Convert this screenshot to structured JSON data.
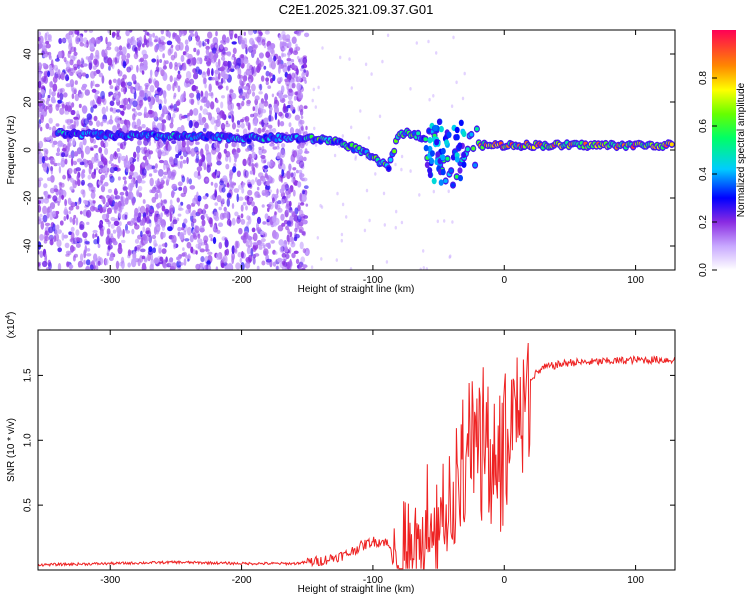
{
  "title": "C2E1.2025.321.09.37.G01",
  "chart_data": [
    {
      "type": "heatmap",
      "title": "C2E1.2025.321.09.37.G01",
      "xlabel": "Height of straight line (km)",
      "ylabel": "Frequency (Hz)",
      "xlim": [
        -355,
        130
      ],
      "ylim": [
        -50,
        50
      ],
      "xticks": [
        -300,
        -200,
        -100,
        0,
        100
      ],
      "xtick_labels": [
        "-300",
        "-200",
        "-100",
        "0",
        "100"
      ],
      "yticks": [
        -40,
        -20,
        0,
        20,
        40
      ],
      "ytick_labels": [
        "-40",
        "-20",
        "0",
        "20",
        "40"
      ],
      "colorbar": {
        "label": "Normalized spectral amplitude",
        "range": [
          0,
          1
        ],
        "ticks": [
          0.0,
          0.2,
          0.4,
          0.6,
          0.8
        ],
        "tick_labels": [
          "0.0",
          "0.2",
          "0.4",
          "0.6",
          "0.8"
        ]
      },
      "ridge": {
        "x": [
          -340,
          -300,
          -280,
          -200,
          -160,
          -130,
          -110,
          -95,
          -88,
          -80,
          -70,
          -55,
          -45,
          -40,
          -30,
          -20,
          0,
          50,
          130
        ],
        "frequency": [
          7,
          6,
          6,
          5,
          5,
          4,
          0,
          -5,
          -7,
          7,
          7,
          4,
          -5,
          -10,
          0,
          2,
          2,
          2,
          2
        ]
      }
    },
    {
      "type": "line",
      "xlabel": "Height of straight line (km)",
      "ylabel": "SNR (10 * v/v)",
      "y_multiplier": "(x10",
      "y_multiplier_exp": "4",
      "y_multiplier_close": ")",
      "xlim": [
        -355,
        130
      ],
      "ylim": [
        0,
        1.85
      ],
      "xticks": [
        -300,
        -200,
        -100,
        0,
        100
      ],
      "xtick_labels": [
        "-300",
        "-200",
        "-100",
        "0",
        "100"
      ],
      "yticks": [
        0.5,
        1.0,
        1.5
      ],
      "ytick_labels": [
        "0.5",
        "1.0",
        "1.5"
      ],
      "color": "#ee2222",
      "series": [
        {
          "name": "SNR",
          "x": [
            -355,
            -300,
            -250,
            -200,
            -160,
            -140,
            -120,
            -110,
            -100,
            -90,
            -85,
            -75,
            -65,
            -55,
            -48,
            -42,
            -36,
            -30,
            -25,
            -20,
            -15,
            -10,
            -5,
            0,
            5,
            10,
            15,
            20,
            25,
            30,
            40,
            50,
            60,
            80,
            100,
            130
          ],
          "values": [
            0.04,
            0.05,
            0.06,
            0.05,
            0.05,
            0.07,
            0.12,
            0.18,
            0.22,
            0.22,
            0.12,
            0.1,
            0.12,
            0.28,
            0.42,
            0.55,
            0.72,
            0.8,
            0.9,
            0.98,
            1.0,
            0.95,
            0.92,
            0.98,
            1.1,
            1.25,
            1.38,
            1.48,
            1.52,
            1.56,
            1.58,
            1.6,
            1.6,
            1.61,
            1.62,
            1.62
          ]
        }
      ]
    }
  ]
}
